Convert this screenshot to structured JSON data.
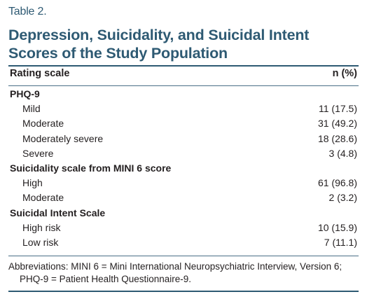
{
  "table": {
    "label": "Table 2.",
    "title_line1": "Depression, Suicidality, and Suicidal Intent",
    "title_line2": "Scores of the Study Population",
    "header": {
      "left": "Rating scale",
      "right": "n (%)"
    },
    "rows": [
      {
        "label": "PHQ-9",
        "value": ""
      },
      {
        "label": "Mild",
        "value": "11 (17.5)"
      },
      {
        "label": "Moderate",
        "value": "31 (49.2)"
      },
      {
        "label": "Moderately severe",
        "value": "18 (28.6)"
      },
      {
        "label": "Severe",
        "value": "3 (4.8)"
      },
      {
        "label": "Suicidality scale from MINI 6 score",
        "value": ""
      },
      {
        "label": "High",
        "value": "61 (96.8)"
      },
      {
        "label": "Moderate",
        "value": "2 (3.2)"
      },
      {
        "label": "Suicidal Intent Scale",
        "value": ""
      },
      {
        "label": "High risk",
        "value": "10 (15.9)"
      },
      {
        "label": "Low risk",
        "value": "7 (11.1)"
      }
    ],
    "footnote_line1": "Abbreviations: MINI 6 = Mini International Neuropsychiatric Interview, Version 6;",
    "footnote_line2": "PHQ-9 = Patient Health Questionnaire-9."
  },
  "colors": {
    "title": "#2e5a73",
    "text": "#231f20",
    "rule": "#2e5a73"
  }
}
